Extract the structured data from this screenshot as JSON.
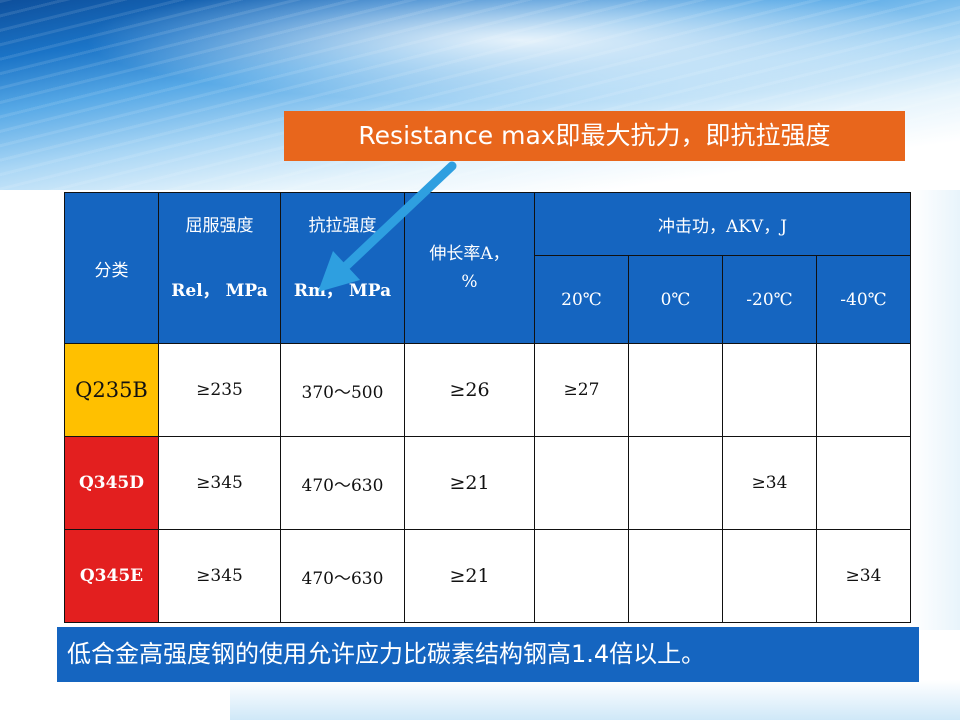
{
  "callout": {
    "text": "Resistance max即最大抗力，即抗拉强度"
  },
  "table": {
    "header": {
      "category": "分类",
      "yield_strength": "屈服强度",
      "yield_symbol": "Rel， MPa",
      "tensile_strength": "抗拉强度",
      "tensile_symbol": "Rm， MPa",
      "elongation": "伸长率A，\n%",
      "impact": "冲击功，AKV，J",
      "temps": [
        "20℃",
        "0℃",
        "-20℃",
        "-40℃"
      ]
    },
    "rows": [
      {
        "grade": "Q235B",
        "yield": "≥235",
        "tensile": "370～500",
        "elongation": "≥26",
        "impact": [
          "≥27",
          "",
          "",
          ""
        ]
      },
      {
        "grade": "Q345D",
        "yield": "≥345",
        "tensile": "470～630",
        "elongation": "≥21",
        "impact": [
          "",
          "",
          "≥34",
          ""
        ]
      },
      {
        "grade": "Q345E",
        "yield": "≥345",
        "tensile": "470～630",
        "elongation": "≥21",
        "impact": [
          "",
          "",
          "",
          "≥34"
        ]
      }
    ]
  },
  "banner": {
    "text": "低合金高强度钢的使用允许应力比碳素结构钢高1.4倍以上。"
  },
  "colors": {
    "header_blue": "#1565c0",
    "callout_orange": "#e8661c",
    "grade_yellow": "#ffc000",
    "grade_red": "#e31f1f",
    "arrow_blue": "#2e9fe0"
  }
}
